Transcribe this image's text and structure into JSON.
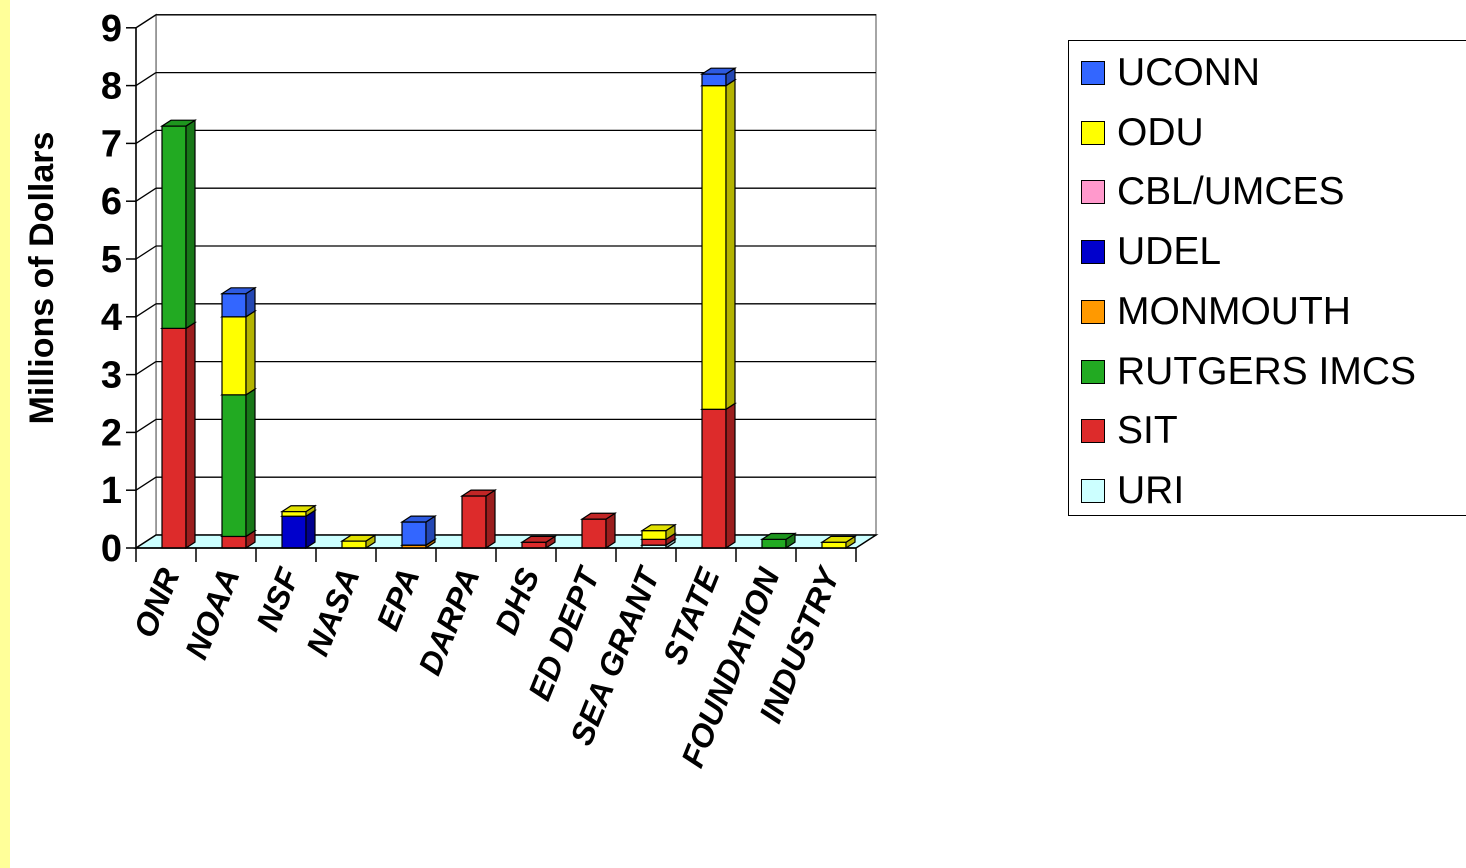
{
  "chart_data": {
    "type": "bar",
    "stacked": true,
    "three_d": true,
    "ylabel": "Millions of Dollars",
    "ylim": [
      0,
      9
    ],
    "yticks": [
      0,
      1,
      2,
      3,
      4,
      5,
      6,
      7,
      8,
      9
    ],
    "grid": true,
    "legend_position": "right",
    "categories": [
      "ONR",
      "NOAA",
      "NSF",
      "NASA",
      "EPA",
      "DARPA",
      "DHS",
      "ED DEPT",
      "SEA GRANT",
      "STATE",
      "FOUNDATION",
      "INDUSTRY"
    ],
    "series": [
      {
        "name": "URI",
        "color": "#ccffff",
        "values": [
          0,
          0,
          0,
          0,
          0,
          0,
          0,
          0,
          0.05,
          0,
          0,
          0
        ]
      },
      {
        "name": "SIT",
        "color": "#dd2b2b",
        "values": [
          3.8,
          0.2,
          0,
          0,
          0,
          0.9,
          0.1,
          0.5,
          0.1,
          2.4,
          0,
          0
        ]
      },
      {
        "name": "RUTGERS IMCS",
        "color": "#22aa22",
        "values": [
          3.5,
          2.45,
          0,
          0,
          0,
          0,
          0,
          0,
          0,
          0,
          0.15,
          0
        ]
      },
      {
        "name": "MONMOUTH",
        "color": "#ff9900",
        "values": [
          0,
          0,
          0,
          0,
          0.05,
          0,
          0,
          0,
          0,
          0,
          0,
          0
        ]
      },
      {
        "name": "UDEL",
        "color": "#0000cc",
        "values": [
          0,
          0,
          0.55,
          0,
          0,
          0,
          0,
          0,
          0,
          0,
          0,
          0
        ]
      },
      {
        "name": "CBL/UMCES",
        "color": "#ff99cc",
        "values": [
          0,
          0,
          0,
          0,
          0,
          0,
          0,
          0,
          0,
          0,
          0,
          0
        ]
      },
      {
        "name": "ODU",
        "color": "#ffff00",
        "values": [
          0,
          1.35,
          0.08,
          0.12,
          0,
          0,
          0,
          0,
          0.15,
          5.6,
          0,
          0.1
        ]
      },
      {
        "name": "UCONN",
        "color": "#3366ff",
        "values": [
          0,
          0.4,
          0,
          0,
          0.4,
          0,
          0,
          0,
          0,
          0.2,
          0,
          0
        ]
      }
    ]
  },
  "legend": {
    "items": [
      {
        "label": "UCONN",
        "color": "#3366ff"
      },
      {
        "label": "ODU",
        "color": "#ffff00"
      },
      {
        "label": "CBL/UMCES",
        "color": "#ff99cc"
      },
      {
        "label": "UDEL",
        "color": "#0000cc"
      },
      {
        "label": "MONMOUTH",
        "color": "#ff9900"
      },
      {
        "label": "RUTGERS IMCS",
        "color": "#22aa22"
      },
      {
        "label": "SIT",
        "color": "#dd2b2b"
      },
      {
        "label": "URI",
        "color": "#ccffff"
      }
    ]
  }
}
